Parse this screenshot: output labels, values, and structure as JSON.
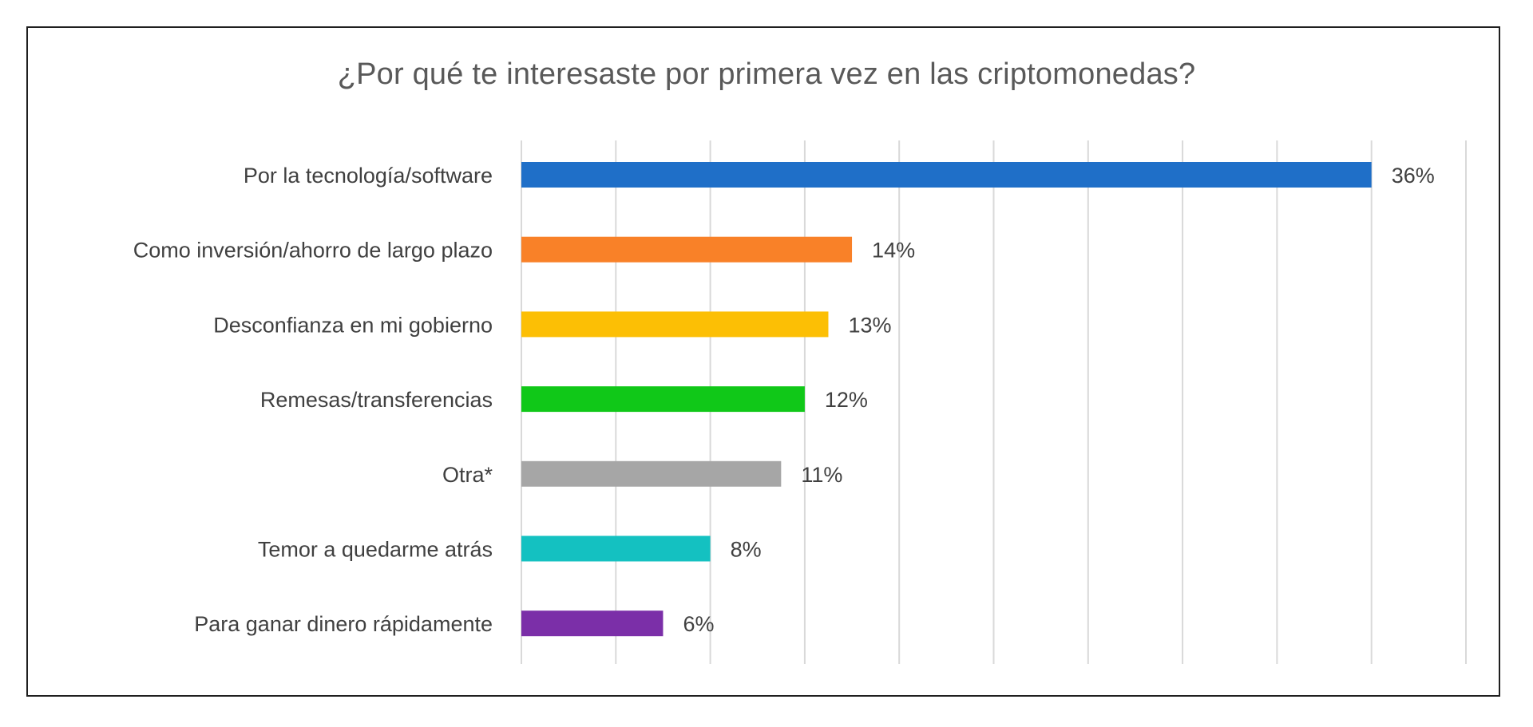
{
  "chart_data": {
    "type": "bar",
    "orientation": "horizontal",
    "title": "¿Por qué te interesaste por primera vez en las criptomonedas?",
    "categories": [
      "Por la tecnología/software",
      "Como inversión/ahorro de largo plazo",
      "Desconfianza en mi gobierno",
      "Remesas/transferencias",
      "Otra*",
      "Temor a quedarme atrás",
      "Para ganar dinero rápidamente"
    ],
    "values": [
      36,
      14,
      13,
      12,
      11,
      8,
      6
    ],
    "value_labels": [
      "36%",
      "14%",
      "13%",
      "12%",
      "11%",
      "8%",
      "6%"
    ],
    "colors": [
      "#1f6fc8",
      "#f98128",
      "#fcbf05",
      "#10c818",
      "#a6a6a6",
      "#14c1c1",
      "#7b2fa8"
    ],
    "xlim": [
      0,
      40
    ],
    "grid": true,
    "gridline_color": "#d9d9d9"
  }
}
